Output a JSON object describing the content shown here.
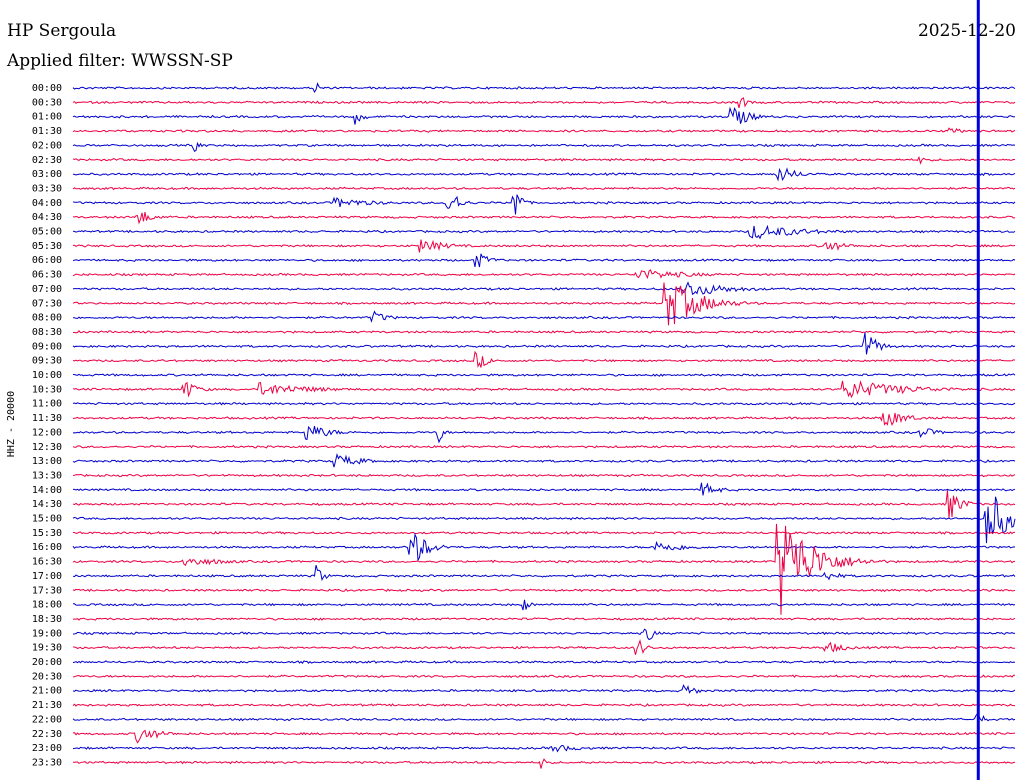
{
  "header": {
    "station": "HP Sergoula",
    "date": "2025-12-20",
    "filter": "Applied filter: WWSSN-SP"
  },
  "side_label": "HHZ - 20000",
  "colors": {
    "trace_a": "#0000cc",
    "trace_b": "#ee0044",
    "cursor": "#0000dd"
  },
  "chart_data": {
    "type": "line",
    "title": "HP Sergoula",
    "subtitle": "Applied filter: WWSSN-SP",
    "ylabel": "HHZ - 20000",
    "xlabel": "",
    "row_labels": [
      "00:00",
      "00:30",
      "01:00",
      "01:30",
      "02:00",
      "02:30",
      "03:00",
      "03:30",
      "04:00",
      "04:30",
      "05:00",
      "05:30",
      "06:00",
      "06:30",
      "07:00",
      "07:30",
      "08:00",
      "08:30",
      "09:00",
      "09:30",
      "10:00",
      "10:30",
      "11:00",
      "11:30",
      "12:00",
      "12:30",
      "13:00",
      "13:30",
      "14:00",
      "14:30",
      "15:00",
      "15:30",
      "16:00",
      "16:30",
      "17:00",
      "17:30",
      "18:00",
      "18:30",
      "19:00",
      "19:30",
      "20:00",
      "20:30",
      "21:00",
      "21:30",
      "22:00",
      "22:30",
      "23:00",
      "23:30"
    ],
    "row_minutes": 30,
    "current_time_fraction": 0.96,
    "grid": false,
    "events": [
      {
        "row": 0,
        "t": 0.26,
        "amp": 6,
        "dur": 0.004
      },
      {
        "row": 1,
        "t": 0.71,
        "amp": 6,
        "dur": 0.006
      },
      {
        "row": 2,
        "t": 0.3,
        "amp": 8,
        "dur": 0.008
      },
      {
        "row": 2,
        "t": 0.7,
        "amp": 12,
        "dur": 0.016
      },
      {
        "row": 3,
        "t": 0.93,
        "amp": 3,
        "dur": 0.02
      },
      {
        "row": 4,
        "t": 0.13,
        "amp": 7,
        "dur": 0.004
      },
      {
        "row": 5,
        "t": 0.9,
        "amp": 4,
        "dur": 0.006
      },
      {
        "row": 6,
        "t": 0.75,
        "amp": 8,
        "dur": 0.018
      },
      {
        "row": 8,
        "t": 0.28,
        "amp": 5,
        "dur": 0.04
      },
      {
        "row": 8,
        "t": 0.4,
        "amp": 14,
        "dur": 0.01
      },
      {
        "row": 8,
        "t": 0.47,
        "amp": 18,
        "dur": 0.006
      },
      {
        "row": 9,
        "t": 0.07,
        "amp": 9,
        "dur": 0.012
      },
      {
        "row": 10,
        "t": 0.72,
        "amp": 8,
        "dur": 0.05
      },
      {
        "row": 11,
        "t": 0.37,
        "amp": 7,
        "dur": 0.025
      },
      {
        "row": 11,
        "t": 0.8,
        "amp": 6,
        "dur": 0.02
      },
      {
        "row": 12,
        "t": 0.43,
        "amp": 8,
        "dur": 0.012
      },
      {
        "row": 13,
        "t": 0.6,
        "amp": 6,
        "dur": 0.05
      },
      {
        "row": 14,
        "t": 0.65,
        "amp": 9,
        "dur": 0.04
      },
      {
        "row": 15,
        "t": 0.63,
        "amp": 28,
        "dur": 0.03
      },
      {
        "row": 16,
        "t": 0.32,
        "amp": 6,
        "dur": 0.015
      },
      {
        "row": 18,
        "t": 0.84,
        "amp": 16,
        "dur": 0.012
      },
      {
        "row": 19,
        "t": 0.43,
        "amp": 9,
        "dur": 0.01
      },
      {
        "row": 21,
        "t": 0.12,
        "amp": 9,
        "dur": 0.012
      },
      {
        "row": 21,
        "t": 0.2,
        "amp": 7,
        "dur": 0.05
      },
      {
        "row": 21,
        "t": 0.82,
        "amp": 10,
        "dur": 0.06
      },
      {
        "row": 23,
        "t": 0.86,
        "amp": 11,
        "dur": 0.02
      },
      {
        "row": 24,
        "t": 0.25,
        "amp": 9,
        "dur": 0.02
      },
      {
        "row": 24,
        "t": 0.39,
        "amp": 10,
        "dur": 0.004
      },
      {
        "row": 24,
        "t": 0.9,
        "amp": 6,
        "dur": 0.015
      },
      {
        "row": 26,
        "t": 0.28,
        "amp": 7,
        "dur": 0.025
      },
      {
        "row": 28,
        "t": 0.67,
        "amp": 7,
        "dur": 0.015
      },
      {
        "row": 29,
        "t": 0.93,
        "amp": 16,
        "dur": 0.012
      },
      {
        "row": 30,
        "t": 0.97,
        "amp": 34,
        "dur": 0.02
      },
      {
        "row": 32,
        "t": 0.36,
        "amp": 20,
        "dur": 0.015
      },
      {
        "row": 32,
        "t": 0.62,
        "amp": 6,
        "dur": 0.03
      },
      {
        "row": 33,
        "t": 0.75,
        "amp": 56,
        "dur": 0.03
      },
      {
        "row": 33,
        "t": 0.12,
        "amp": 5,
        "dur": 0.04
      },
      {
        "row": 34,
        "t": 0.26,
        "amp": 11,
        "dur": 0.006
      },
      {
        "row": 34,
        "t": 0.8,
        "amp": 5,
        "dur": 0.015
      },
      {
        "row": 36,
        "t": 0.48,
        "amp": 6,
        "dur": 0.006
      },
      {
        "row": 38,
        "t": 0.61,
        "amp": 10,
        "dur": 0.006
      },
      {
        "row": 39,
        "t": 0.6,
        "amp": 9,
        "dur": 0.008
      },
      {
        "row": 39,
        "t": 0.8,
        "amp": 6,
        "dur": 0.02
      },
      {
        "row": 42,
        "t": 0.65,
        "amp": 8,
        "dur": 0.01
      },
      {
        "row": 44,
        "t": 0.96,
        "amp": 8,
        "dur": 0.006
      },
      {
        "row": 45,
        "t": 0.07,
        "amp": 9,
        "dur": 0.02
      },
      {
        "row": 46,
        "t": 0.51,
        "amp": 4,
        "dur": 0.03
      },
      {
        "row": 47,
        "t": 0.5,
        "amp": 7,
        "dur": 0.004
      }
    ]
  }
}
